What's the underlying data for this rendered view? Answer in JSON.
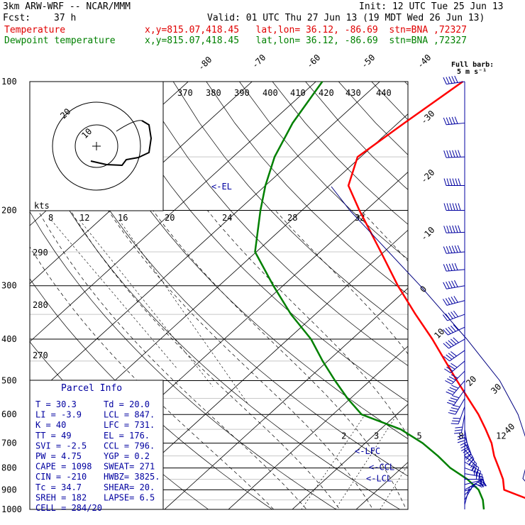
{
  "header": {
    "model": "3km ARW-WRF -- NCAR/MMM",
    "init": "Init: 12 UTC Tue 25 Jun 13",
    "fcst_label": "Fcst:",
    "fcst_value": "37 h",
    "valid": "Valid: 01 UTC Thu 27 Jun 13 (19 MDT Wed 26 Jun 13)",
    "temp_label": "Temperature",
    "temp_info": "x,y=815.07,418.45   lat,lon= 36.12, -86.69  stn=BNA ,72327",
    "dew_label": "Dewpoint temperature",
    "dew_info": "x,y=815.07,418.45   lat,lon= 36.12, -86.69  stn=BNA ,72327"
  },
  "barb_title": "Full barb:",
  "barb_units": "5 m s⁻¹",
  "parcel": {
    "title": "Parcel Info",
    "rows": [
      {
        "a": "T    =   30.3",
        "b": "Td  = 20.0"
      },
      {
        "a": "LI   =   -3.9",
        "b": "LCL =  847."
      },
      {
        "a": "K    =     40",
        "b": "LFC =  731."
      },
      {
        "a": "TT   =     49",
        "b": "EL  =  176."
      },
      {
        "a": "SVI  =   -2.5",
        "b": "CCL =  796."
      },
      {
        "a": "PW   =   4.75",
        "b": "YGP =  0.2"
      },
      {
        "a": "CAPE =   1098",
        "b": "SWEAT=  271"
      },
      {
        "a": "CIN  =   -210",
        "b": "HWBZ= 3825."
      },
      {
        "a": "Tc   =   34.7",
        "b": "SHEAR=  20."
      },
      {
        "a": "SREH =    182",
        "b": "LAPSE=  6.5"
      },
      {
        "a": "CELL = 284/20",
        "b": ""
      }
    ]
  },
  "hodograph": {
    "label": "kts",
    "rings": [
      "10",
      "20"
    ]
  },
  "level_markers": {
    "el": "<-EL",
    "lfc": "<-LFC",
    "ccl": "<-CCL",
    "lcl": "<-LCL"
  },
  "chart_data": {
    "type": "line",
    "title": "",
    "xlabel": "",
    "ylabel": "",
    "y_scale": "log-pressure",
    "ylim": [
      1000,
      100
    ],
    "pressure_levels": [
      1000,
      900,
      800,
      700,
      600,
      500,
      400,
      300,
      200,
      100
    ],
    "pressure_tick_labels": [
      "1000",
      "900",
      "800",
      "700",
      "600",
      "500",
      "400",
      "300",
      "200",
      "100"
    ],
    "isotherm_labels": [
      "-80",
      "-70",
      "-60",
      "-50",
      "-40",
      "-30",
      "-20",
      "-10",
      "0",
      "10",
      "20",
      "30",
      "40"
    ],
    "theta_labels": [
      "370",
      "380",
      "390",
      "400",
      "410",
      "420",
      "430",
      "440"
    ],
    "theta_left_labels": [
      "290",
      "280",
      "270"
    ],
    "mixing_ratio_labels": [
      "2",
      "3",
      "5",
      "8",
      "12",
      "20"
    ],
    "hodo_speed_labels": [
      "8",
      "12",
      "16",
      "20",
      "24",
      "28",
      "32"
    ],
    "series": [
      {
        "name": "Temperature",
        "color": "#ff0000",
        "points": [
          [
            1000,
            30.3
          ],
          [
            950,
            25.6
          ],
          [
            900,
            19.8
          ],
          [
            850,
            17.8
          ],
          [
            800,
            15.2
          ],
          [
            750,
            12.4
          ],
          [
            700,
            9.8
          ],
          [
            650,
            6.5
          ],
          [
            600,
            2.8
          ],
          [
            550,
            -1.6
          ],
          [
            500,
            -6.4
          ],
          [
            450,
            -11.6
          ],
          [
            400,
            -17.4
          ],
          [
            350,
            -24.3
          ],
          [
            300,
            -32.0
          ],
          [
            250,
            -40.5
          ],
          [
            200,
            -51.0
          ],
          [
            175,
            -57.0
          ],
          [
            150,
            -60.5
          ],
          [
            125,
            -59.0
          ],
          [
            100,
            -57.0
          ]
        ]
      },
      {
        "name": "Dewpoint temperature",
        "color": "#008000",
        "points": [
          [
            1000,
            20.0
          ],
          [
            950,
            18.2
          ],
          [
            900,
            15.8
          ],
          [
            850,
            12.2
          ],
          [
            800,
            7.6
          ],
          [
            750,
            3.6
          ],
          [
            700,
            -1.0
          ],
          [
            650,
            -6.8
          ],
          [
            600,
            -15.5
          ],
          [
            550,
            -20.5
          ],
          [
            500,
            -25.5
          ],
          [
            450,
            -30.8
          ],
          [
            400,
            -36.4
          ],
          [
            350,
            -43.8
          ],
          [
            300,
            -51.5
          ],
          [
            250,
            -60.2
          ],
          [
            200,
            -66.5
          ],
          [
            175,
            -70.0
          ],
          [
            150,
            -73.5
          ],
          [
            125,
            -76.5
          ],
          [
            100,
            -79.0
          ]
        ]
      }
    ],
    "parcel_path": {
      "name": "Parcel",
      "points": [
        [
          1000,
          30.3
        ],
        [
          847,
          20.8
        ],
        [
          731,
          17.2
        ],
        [
          600,
          9.0
        ],
        [
          500,
          0.3
        ],
        [
          400,
          -12.0
        ],
        [
          300,
          -28.5
        ],
        [
          200,
          -52.5
        ],
        [
          176,
          -59.5
        ]
      ]
    },
    "wind_barbs": [
      [
        1000,
        0,
        6
      ],
      [
        975,
        15,
        8
      ],
      [
        950,
        30,
        9
      ],
      [
        925,
        45,
        10
      ],
      [
        900,
        60,
        11
      ],
      [
        875,
        75,
        12
      ],
      [
        850,
        90,
        13
      ],
      [
        825,
        100,
        14
      ],
      [
        800,
        110,
        15
      ],
      [
        775,
        120,
        15
      ],
      [
        750,
        130,
        16
      ],
      [
        725,
        140,
        16
      ],
      [
        700,
        150,
        17
      ],
      [
        675,
        160,
        17
      ],
      [
        650,
        170,
        18
      ],
      [
        625,
        180,
        18
      ],
      [
        600,
        190,
        19
      ],
      [
        575,
        200,
        19
      ],
      [
        550,
        210,
        20
      ],
      [
        525,
        215,
        21
      ],
      [
        500,
        220,
        21
      ],
      [
        475,
        225,
        22
      ],
      [
        450,
        230,
        23
      ],
      [
        425,
        235,
        24
      ],
      [
        400,
        240,
        25
      ],
      [
        375,
        245,
        25
      ],
      [
        350,
        250,
        26
      ],
      [
        325,
        255,
        27
      ],
      [
        300,
        260,
        28
      ],
      [
        275,
        265,
        29
      ],
      [
        250,
        265,
        30
      ],
      [
        225,
        268,
        31
      ],
      [
        200,
        270,
        32
      ],
      [
        175,
        270,
        31
      ],
      [
        150,
        268,
        30
      ],
      [
        125,
        265,
        28
      ],
      [
        100,
        262,
        25
      ]
    ]
  },
  "colors": {
    "temperature": "#ff0000",
    "dewpoint": "#008000",
    "grid": "#000000",
    "barbs": "#0000a0",
    "parcel": "#000080"
  }
}
